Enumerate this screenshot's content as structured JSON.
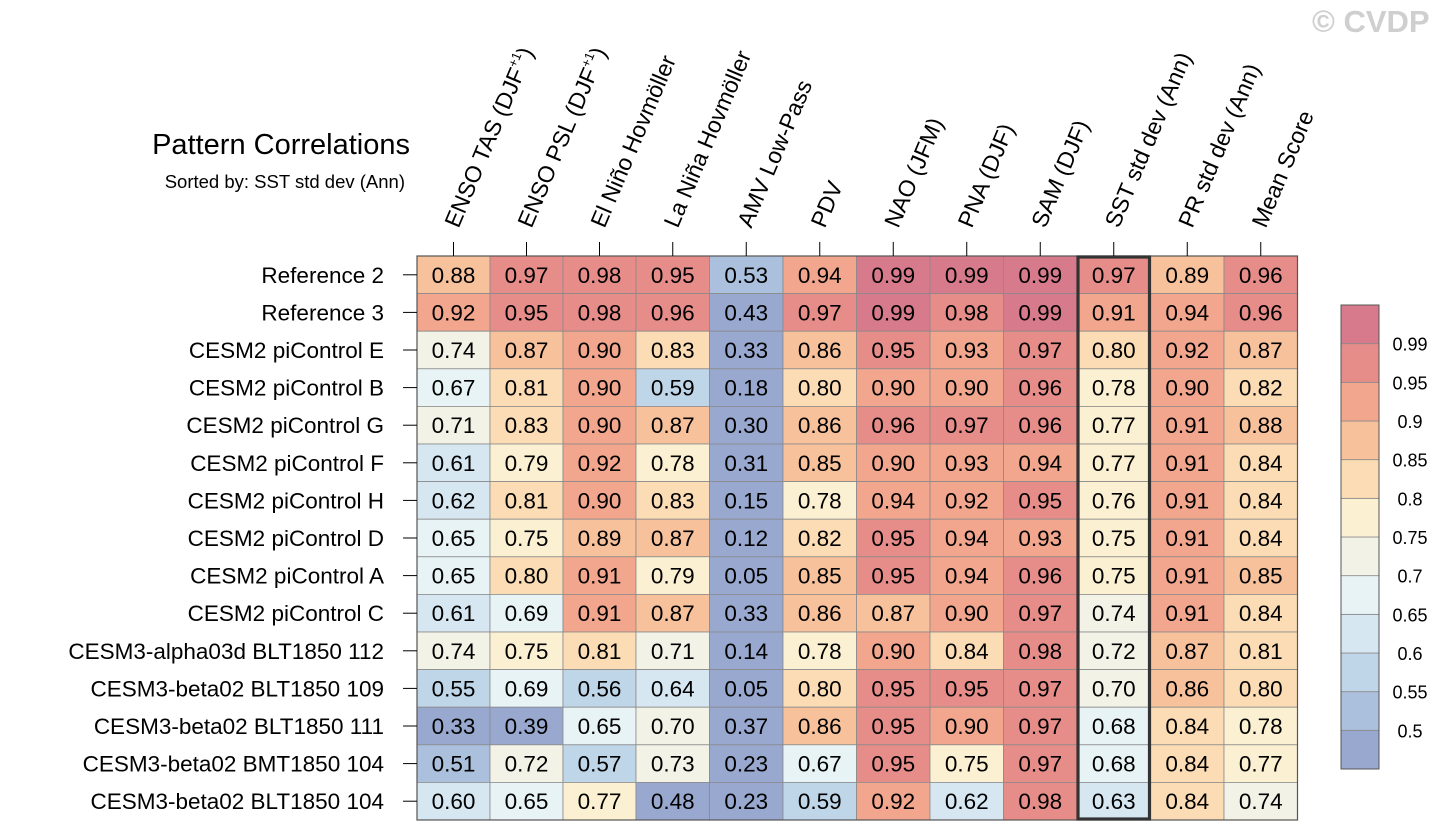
{
  "watermark": "© CVDP",
  "chart_data": {
    "type": "heatmap",
    "title": "Pattern Correlations",
    "subtitle": "Sorted by: SST std dev (Ann)",
    "columns": [
      {
        "text": "ENSO TAS (DJF",
        "sup": "+1",
        "suffix": ")"
      },
      {
        "text": "ENSO PSL (DJF",
        "sup": "+1",
        "suffix": ")"
      },
      {
        "text": "El Niño Hovmöller",
        "sup": "",
        "suffix": ""
      },
      {
        "text": "La Niña Hovmöller",
        "sup": "",
        "suffix": ""
      },
      {
        "text": "AMV Low-Pass",
        "sup": "",
        "suffix": ""
      },
      {
        "text": "PDV",
        "sup": "",
        "suffix": ""
      },
      {
        "text": "NAO (JFM)",
        "sup": "",
        "suffix": ""
      },
      {
        "text": "PNA (DJF)",
        "sup": "",
        "suffix": ""
      },
      {
        "text": "SAM (DJF)",
        "sup": "",
        "suffix": ""
      },
      {
        "text": "SST std dev (Ann)",
        "sup": "",
        "suffix": ""
      },
      {
        "text": "PR std dev (Ann)",
        "sup": "",
        "suffix": ""
      },
      {
        "text": "Mean Score",
        "sup": "",
        "suffix": ""
      }
    ],
    "highlight_column": 9,
    "rows": [
      "Reference 2",
      "Reference 3",
      "CESM2 piControl E",
      "CESM2 piControl B",
      "CESM2 piControl G",
      "CESM2 piControl F",
      "CESM2 piControl H",
      "CESM2 piControl D",
      "CESM2 piControl A",
      "CESM2 piControl C",
      "CESM3-alpha03d BLT1850 112",
      "CESM3-beta02 BLT1850 109",
      "CESM3-beta02 BLT1850 111",
      "CESM3-beta02 BMT1850 104",
      "CESM3-beta02 BLT1850 104"
    ],
    "values": [
      [
        "0.88",
        "0.97",
        "0.98",
        "0.95",
        "0.53",
        "0.94",
        "0.99",
        "0.99",
        "0.99",
        "0.97",
        "0.89",
        "0.96"
      ],
      [
        "0.92",
        "0.95",
        "0.98",
        "0.96",
        "0.43",
        "0.97",
        "0.99",
        "0.98",
        "0.99",
        "0.91",
        "0.94",
        "0.96"
      ],
      [
        "0.74",
        "0.87",
        "0.90",
        "0.83",
        "0.33",
        "0.86",
        "0.95",
        "0.93",
        "0.97",
        "0.80",
        "0.92",
        "0.87"
      ],
      [
        "0.67",
        "0.81",
        "0.90",
        "0.59",
        "0.18",
        "0.80",
        "0.90",
        "0.90",
        "0.96",
        "0.78",
        "0.90",
        "0.82"
      ],
      [
        "0.71",
        "0.83",
        "0.90",
        "0.87",
        "0.30",
        "0.86",
        "0.96",
        "0.97",
        "0.96",
        "0.77",
        "0.91",
        "0.88"
      ],
      [
        "0.61",
        "0.79",
        "0.92",
        "0.78",
        "0.31",
        "0.85",
        "0.90",
        "0.93",
        "0.94",
        "0.77",
        "0.91",
        "0.84"
      ],
      [
        "0.62",
        "0.81",
        "0.90",
        "0.83",
        "0.15",
        "0.78",
        "0.94",
        "0.92",
        "0.95",
        "0.76",
        "0.91",
        "0.84"
      ],
      [
        "0.65",
        "0.75",
        "0.89",
        "0.87",
        "0.12",
        "0.82",
        "0.95",
        "0.94",
        "0.93",
        "0.75",
        "0.91",
        "0.84"
      ],
      [
        "0.65",
        "0.80",
        "0.91",
        "0.79",
        "0.05",
        "0.85",
        "0.95",
        "0.94",
        "0.96",
        "0.75",
        "0.91",
        "0.85"
      ],
      [
        "0.61",
        "0.69",
        "0.91",
        "0.87",
        "0.33",
        "0.86",
        "0.87",
        "0.90",
        "0.97",
        "0.74",
        "0.91",
        "0.84"
      ],
      [
        "0.74",
        "0.75",
        "0.81",
        "0.71",
        "0.14",
        "0.78",
        "0.90",
        "0.84",
        "0.98",
        "0.72",
        "0.87",
        "0.81"
      ],
      [
        "0.55",
        "0.69",
        "0.56",
        "0.64",
        "0.05",
        "0.80",
        "0.95",
        "0.95",
        "0.97",
        "0.70",
        "0.86",
        "0.80"
      ],
      [
        "0.33",
        "0.39",
        "0.65",
        "0.70",
        "0.37",
        "0.86",
        "0.95",
        "0.90",
        "0.97",
        "0.68",
        "0.84",
        "0.78"
      ],
      [
        "0.51",
        "0.72",
        "0.57",
        "0.73",
        "0.23",
        "0.67",
        "0.95",
        "0.75",
        "0.97",
        "0.68",
        "0.84",
        "0.77"
      ],
      [
        "0.60",
        "0.65",
        "0.77",
        "0.48",
        "0.23",
        "0.59",
        "0.92",
        "0.62",
        "0.98",
        "0.63",
        "0.84",
        "0.74"
      ]
    ],
    "colorbar": {
      "boundaries": [
        0.5,
        0.55,
        0.6,
        0.65,
        0.7,
        0.75,
        0.8,
        0.85,
        0.9,
        0.95,
        0.99
      ],
      "labels": [
        "0.5",
        "0.55",
        "0.6",
        "0.65",
        "0.7",
        "0.75",
        "0.8",
        "0.85",
        "0.9",
        "0.95",
        "0.99"
      ],
      "colors": [
        "#98a8cf",
        "#aac0dc",
        "#bfd5e8",
        "#d6e7f2",
        "#e8f3f6",
        "#f3f2e7",
        "#fcf0d2",
        "#fbdcb4",
        "#f7c19c",
        "#f1a68d",
        "#e68c89",
        "#d67a8c"
      ]
    }
  }
}
